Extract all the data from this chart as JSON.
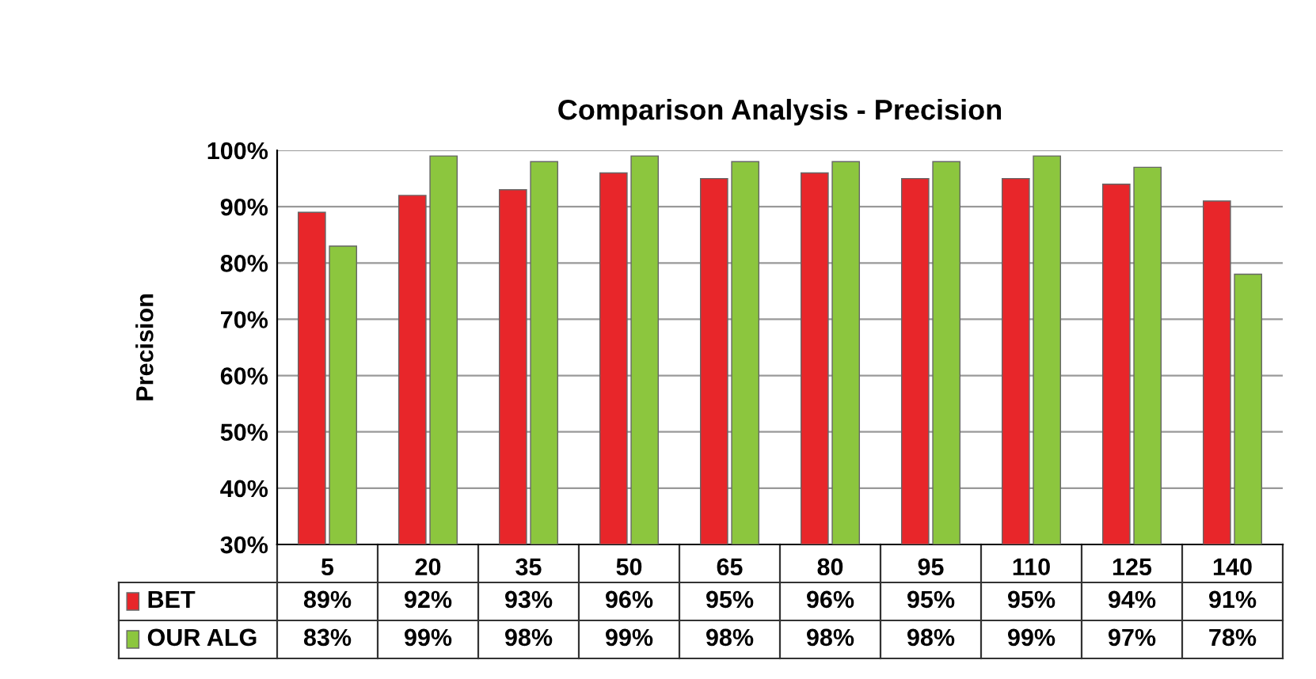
{
  "chart_data": {
    "type": "bar",
    "title": "Comparison Analysis - Precision",
    "ylabel": "Precision",
    "categories": [
      "5",
      "20",
      "35",
      "50",
      "65",
      "80",
      "95",
      "110",
      "125",
      "140"
    ],
    "series": [
      {
        "name": "BET",
        "color": "#e8262a",
        "values": [
          89,
          92,
          93,
          96,
          95,
          96,
          95,
          95,
          94,
          91
        ],
        "value_labels": [
          "89%",
          "92%",
          "93%",
          "96%",
          "95%",
          "96%",
          "95%",
          "95%",
          "94%",
          "91%"
        ]
      },
      {
        "name": "OUR ALG",
        "color": "#8cc63e",
        "values": [
          83,
          99,
          98,
          99,
          98,
          98,
          98,
          99,
          97,
          78
        ],
        "value_labels": [
          "83%",
          "99%",
          "98%",
          "99%",
          "98%",
          "98%",
          "98%",
          "99%",
          "97%",
          "78%"
        ]
      }
    ],
    "ylim": [
      30,
      100
    ],
    "yticks": [
      {
        "value": 30,
        "label": "30%"
      },
      {
        "value": 40,
        "label": "40%"
      },
      {
        "value": 50,
        "label": "50%"
      },
      {
        "value": 60,
        "label": "60%"
      },
      {
        "value": 70,
        "label": "70%"
      },
      {
        "value": 80,
        "label": "80%"
      },
      {
        "value": 90,
        "label": "90%"
      },
      {
        "value": 100,
        "label": "100%"
      }
    ],
    "grid": "y",
    "legend": "bottom"
  }
}
